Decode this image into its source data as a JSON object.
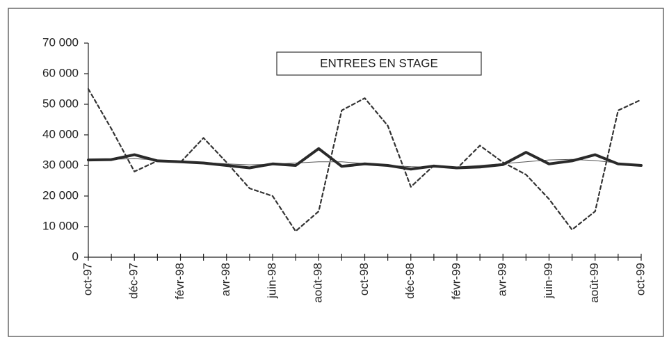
{
  "chart_data": {
    "type": "line",
    "title": "ENTREES EN STAGE",
    "categories": [
      "oct-97",
      null,
      "déc-97",
      null,
      "févr-98",
      null,
      "avr-98",
      null,
      "juin-98",
      null,
      "août-98",
      null,
      "oct-98",
      null,
      "déc-98",
      null,
      "févr-99",
      null,
      "avr-99",
      null,
      "juin-99",
      null,
      "août-99",
      null,
      "oct-99"
    ],
    "series": [
      {
        "color": "#333333",
        "line_style": "dashed",
        "values": [
          55000,
          42000,
          28000,
          31500,
          31000,
          39000,
          31000,
          22500,
          20000,
          8500,
          15000,
          48000,
          52000,
          43000,
          23000,
          30000,
          29000,
          36500,
          31000,
          27000,
          19000,
          9000,
          15000,
          48000,
          51500
        ]
      },
      {
        "color": "#555555",
        "line_style": "thin",
        "values": [
          32000,
          32000,
          32200,
          31800,
          31400,
          31000,
          30500,
          30200,
          30400,
          30800,
          31200,
          31200,
          30600,
          30000,
          29600,
          29400,
          29500,
          30000,
          30600,
          31200,
          31800,
          32000,
          31600,
          30800,
          30000
        ]
      },
      {
        "color": "#2a2a2a",
        "line_style": "bold",
        "values": [
          31800,
          31900,
          33500,
          31500,
          31200,
          30800,
          30000,
          29200,
          30500,
          30000,
          35500,
          29700,
          30500,
          30000,
          28800,
          29800,
          29200,
          29500,
          30300,
          34300,
          30500,
          31500,
          33500,
          30500,
          30000
        ]
      }
    ],
    "ylim": [
      0,
      70000
    ],
    "yticks": [
      0,
      {
        "value": 10000,
        "label": "10 000"
      },
      {
        "value": 20000,
        "label": "20 000"
      },
      {
        "value": 30000,
        "label": "30 000"
      },
      {
        "value": 40000,
        "label": "40 000"
      },
      {
        "value": 50000,
        "label": "50 000"
      },
      {
        "value": 60000,
        "label": "60 000"
      },
      {
        "value": 70000,
        "label": "70 000"
      }
    ],
    "grid": false
  }
}
